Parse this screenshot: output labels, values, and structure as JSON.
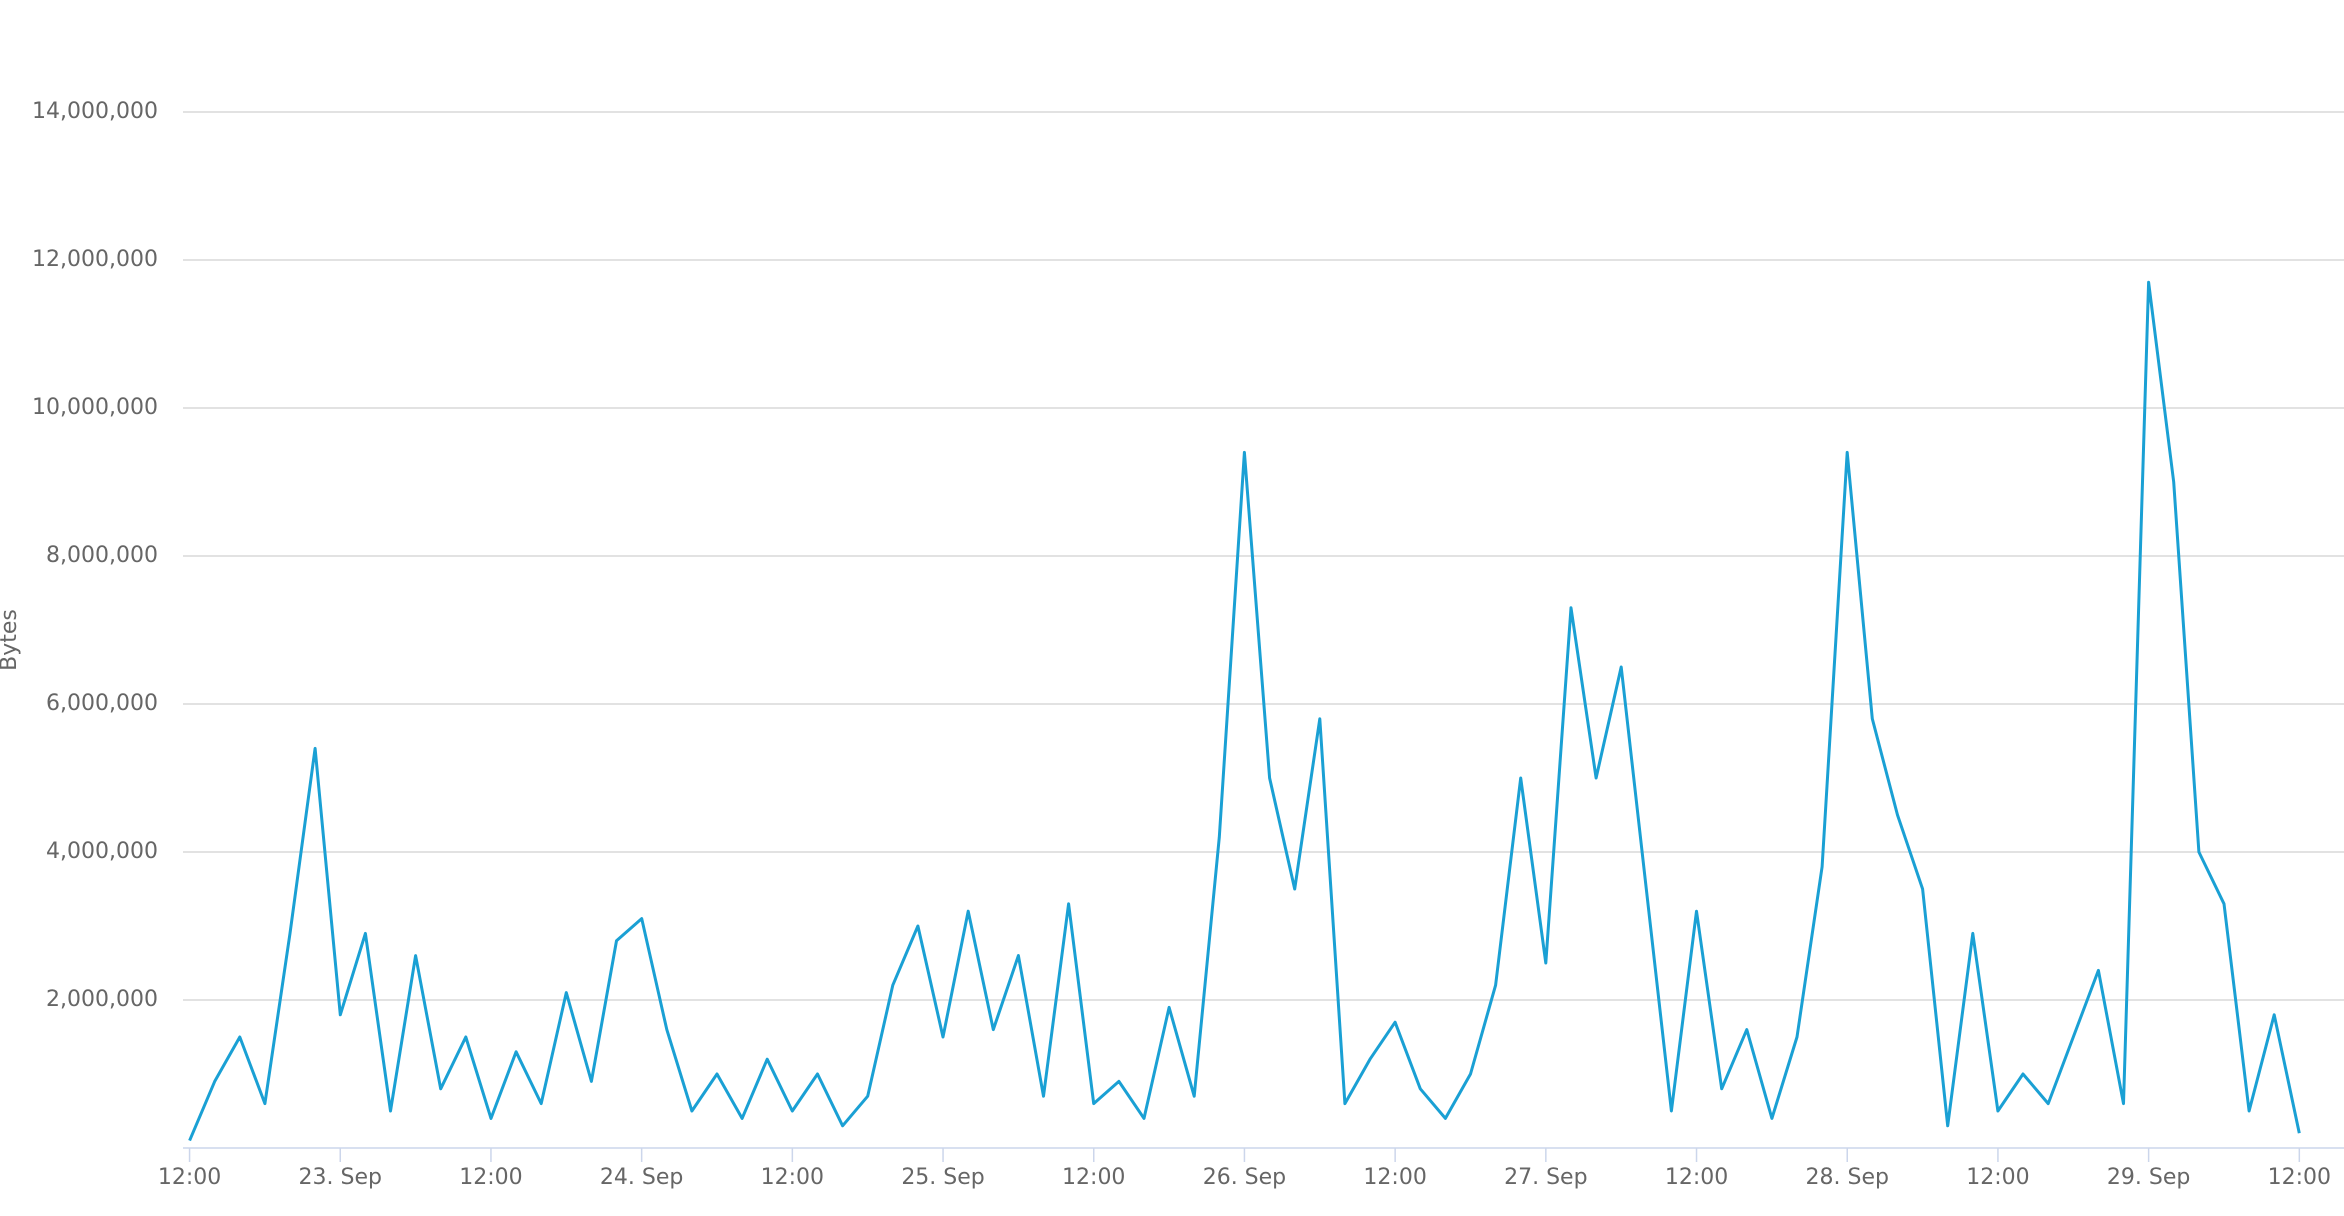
{
  "chart_data": {
    "type": "line",
    "y_label": "Bytes",
    "x": [
      "22 Sep 12:00",
      "22 Sep 14:00",
      "22 Sep 16:00",
      "22 Sep 18:00",
      "22 Sep 20:00",
      "22 Sep 22:00",
      "23 Sep 00:00",
      "23 Sep 02:00",
      "23 Sep 04:00",
      "23 Sep 06:00",
      "23 Sep 08:00",
      "23 Sep 10:00",
      "23 Sep 12:00",
      "23 Sep 14:00",
      "23 Sep 16:00",
      "23 Sep 18:00",
      "23 Sep 20:00",
      "23 Sep 22:00",
      "24 Sep 00:00",
      "24 Sep 02:00",
      "24 Sep 04:00",
      "24 Sep 06:00",
      "24 Sep 08:00",
      "24 Sep 10:00",
      "24 Sep 12:00",
      "24 Sep 14:00",
      "24 Sep 16:00",
      "24 Sep 18:00",
      "24 Sep 20:00",
      "24 Sep 22:00",
      "25 Sep 00:00",
      "25 Sep 02:00",
      "25 Sep 04:00",
      "25 Sep 06:00",
      "25 Sep 08:00",
      "25 Sep 10:00",
      "25 Sep 12:00",
      "25 Sep 14:00",
      "25 Sep 16:00",
      "25 Sep 18:00",
      "25 Sep 20:00",
      "25 Sep 22:00",
      "26 Sep 00:00",
      "26 Sep 02:00",
      "26 Sep 04:00",
      "26 Sep 06:00",
      "26 Sep 08:00",
      "26 Sep 10:00",
      "26 Sep 12:00",
      "26 Sep 14:00",
      "26 Sep 16:00",
      "26 Sep 18:00",
      "26 Sep 20:00",
      "26 Sep 22:00",
      "27 Sep 00:00",
      "27 Sep 02:00",
      "27 Sep 04:00",
      "27 Sep 06:00",
      "27 Sep 08:00",
      "27 Sep 10:00",
      "27 Sep 12:00",
      "27 Sep 14:00",
      "27 Sep 16:00",
      "27 Sep 18:00",
      "27 Sep 20:00",
      "27 Sep 22:00",
      "28 Sep 00:00",
      "28 Sep 02:00",
      "28 Sep 04:00",
      "28 Sep 06:00",
      "28 Sep 08:00",
      "28 Sep 10:00",
      "28 Sep 12:00",
      "28 Sep 14:00",
      "28 Sep 16:00",
      "28 Sep 18:00",
      "28 Sep 20:00",
      "28 Sep 22:00",
      "29 Sep 00:00",
      "29 Sep 02:00",
      "29 Sep 04:00",
      "29 Sep 06:00",
      "29 Sep 08:00",
      "29 Sep 10:00",
      "29 Sep 12:00"
    ],
    "series": [
      {
        "name": "Bytes",
        "color": "#1aa0d4",
        "values": [
          100000,
          900000,
          1500000,
          600000,
          2900000,
          5400000,
          1800000,
          2900000,
          500000,
          2600000,
          800000,
          1500000,
          400000,
          1300000,
          600000,
          2100000,
          900000,
          2800000,
          3100000,
          1600000,
          500000,
          1000000,
          400000,
          1200000,
          500000,
          1000000,
          300000,
          700000,
          2200000,
          3000000,
          1500000,
          3200000,
          1600000,
          2600000,
          700000,
          3300000,
          600000,
          900000,
          400000,
          1900000,
          700000,
          4200000,
          9400000,
          5000000,
          3500000,
          5800000,
          600000,
          1200000,
          1700000,
          800000,
          400000,
          1000000,
          2200000,
          5000000,
          2500000,
          7300000,
          5000000,
          6500000,
          3500000,
          500000,
          3200000,
          800000,
          1600000,
          400000,
          1500000,
          3800000,
          9400000,
          5800000,
          4500000,
          3500000,
          300000,
          2900000,
          500000,
          1000000,
          600000,
          1500000,
          2400000,
          600000,
          11700000,
          9000000,
          4000000,
          3300000,
          500000,
          1800000,
          200000
        ]
      }
    ],
    "xlim": [
      "22 Sep 11:00",
      "29 Sep 15:00"
    ],
    "xticks": [
      {
        "value": "22 Sep 12:00",
        "label": "12:00"
      },
      {
        "value": "23 Sep 00:00",
        "label": "23. Sep"
      },
      {
        "value": "23 Sep 12:00",
        "label": "12:00"
      },
      {
        "value": "24 Sep 00:00",
        "label": "24. Sep"
      },
      {
        "value": "24 Sep 12:00",
        "label": "12:00"
      },
      {
        "value": "25 Sep 00:00",
        "label": "25. Sep"
      },
      {
        "value": "25 Sep 12:00",
        "label": "12:00"
      },
      {
        "value": "26 Sep 00:00",
        "label": "26. Sep"
      },
      {
        "value": "26 Sep 12:00",
        "label": "12:00"
      },
      {
        "value": "27 Sep 00:00",
        "label": "27. Sep"
      },
      {
        "value": "27 Sep 12:00",
        "label": "12:00"
      },
      {
        "value": "28 Sep 00:00",
        "label": "28. Sep"
      },
      {
        "value": "28 Sep 12:00",
        "label": "12:00"
      },
      {
        "value": "29 Sep 00:00",
        "label": "29. Sep"
      },
      {
        "value": "29 Sep 12:00",
        "label": "12:00"
      }
    ],
    "ylim": [
      0,
      14000000
    ],
    "yticks": [
      {
        "value": 2000000,
        "label": "2,000,000"
      },
      {
        "value": 4000000,
        "label": "4,000,000"
      },
      {
        "value": 6000000,
        "label": "6,000,000"
      },
      {
        "value": 8000000,
        "label": "8,000,000"
      },
      {
        "value": 10000000,
        "label": "10,000,000"
      },
      {
        "value": 12000000,
        "label": "12,000,000"
      },
      {
        "value": 14000000,
        "label": "14,000,000"
      }
    ],
    "grid": true
  }
}
